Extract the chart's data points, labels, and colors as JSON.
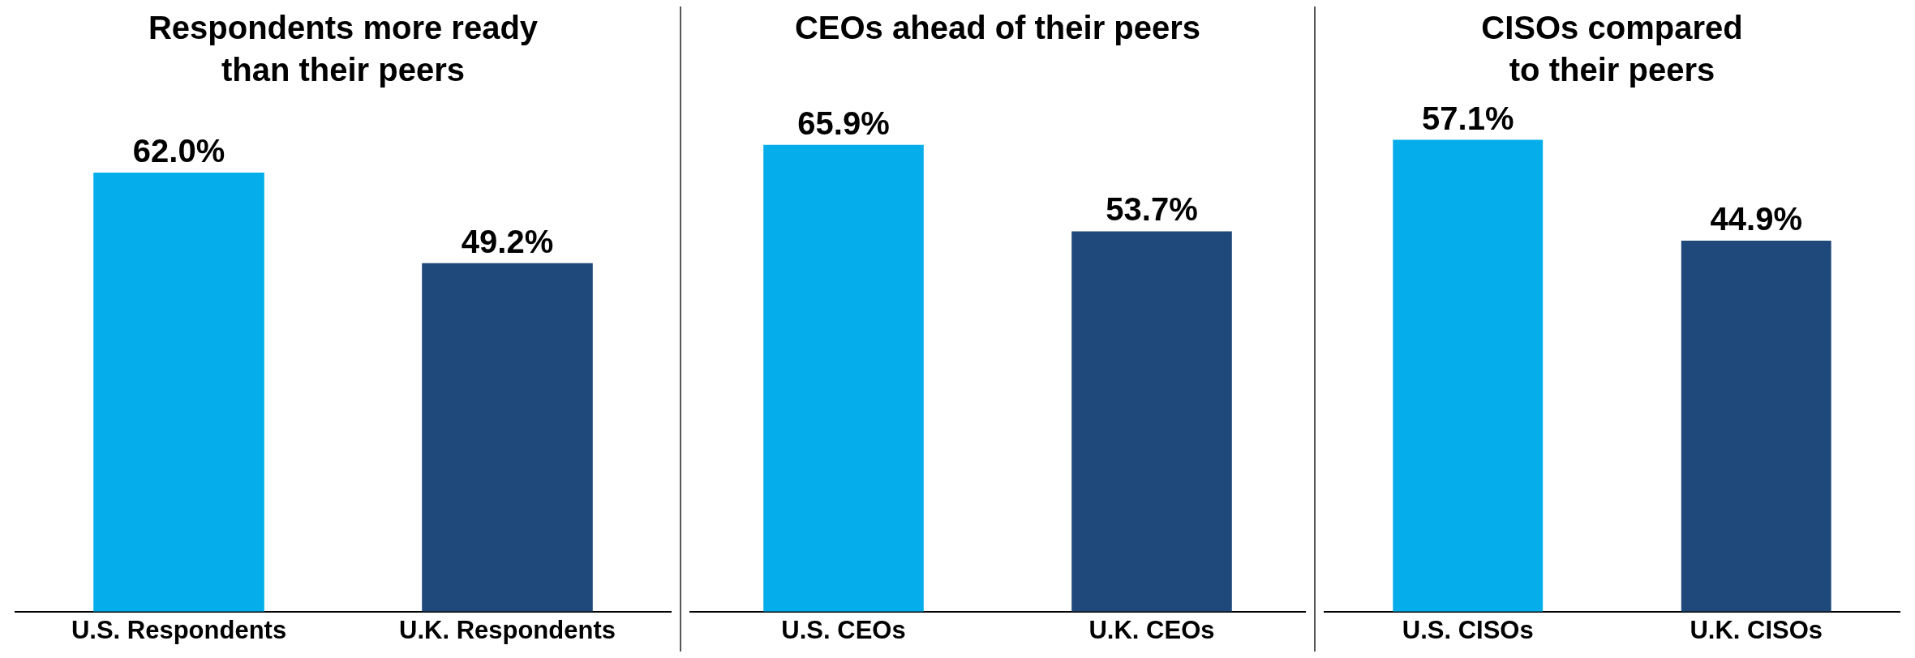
{
  "chart_data": [
    {
      "type": "bar",
      "title": "Respondents more ready than their peers",
      "categories": [
        "U.S. Respondents",
        "U.K. Respondents"
      ],
      "values": [
        62.0,
        49.2
      ],
      "colors": [
        "#05adeb",
        "#1f497a"
      ],
      "value_labels": [
        "62.0%",
        "49.2%"
      ],
      "grid": false,
      "legend": false
    },
    {
      "type": "bar",
      "title": "CEOs ahead of their peers",
      "categories": [
        "U.S. CEOs",
        "U.K. CEOs"
      ],
      "values": [
        65.9,
        53.7
      ],
      "colors": [
        "#05adeb",
        "#1f497a"
      ],
      "value_labels": [
        "65.9%",
        "53.7%"
      ],
      "grid": false,
      "legend": false
    },
    {
      "type": "bar",
      "title": "CISOs compared to their peers",
      "categories": [
        "U.S. CISOs",
        "U.K. CISOs"
      ],
      "values": [
        57.1,
        44.9
      ],
      "colors": [
        "#05adeb",
        "#1f497a"
      ],
      "value_labels": [
        "57.1%",
        "44.9%"
      ],
      "grid": false,
      "legend": false
    }
  ]
}
